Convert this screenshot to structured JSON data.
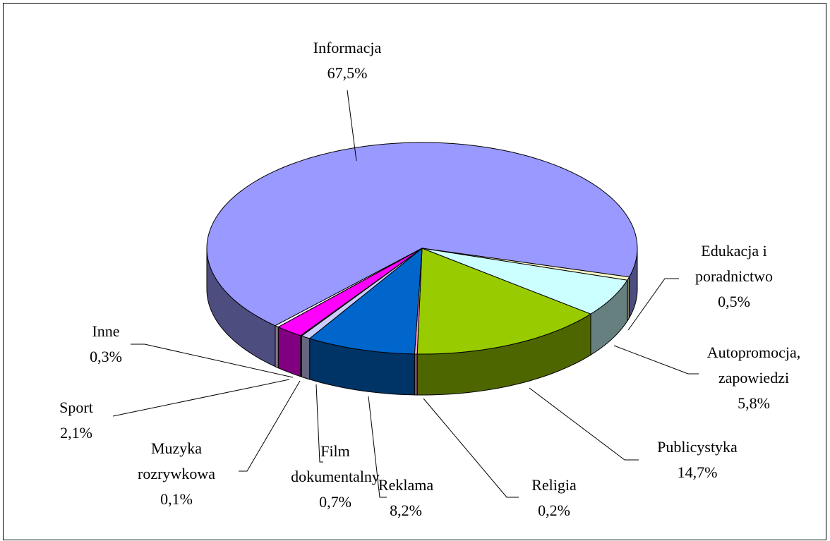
{
  "chart_data": {
    "type": "pie",
    "categories": [
      "Informacja",
      "Edukacja i poradnictwo",
      "Autopromocja, zapowiedzi",
      "Publicystyka",
      "Religia",
      "Reklama",
      "Film dokumentalny",
      "Muzyka rozrywkowa",
      "Sport",
      "Inne"
    ],
    "values": [
      67.5,
      0.5,
      5.8,
      14.7,
      0.2,
      8.2,
      0.7,
      0.1,
      2.1,
      0.3
    ],
    "value_labels": [
      "67,5%",
      "0,5%",
      "5,8%",
      "14,7%",
      "0,2%",
      "8,2%",
      "0,7%",
      "0,1%",
      "2,1%",
      "0,3%"
    ],
    "colors": [
      "#9999ff",
      "#ffffcc",
      "#ccffff",
      "#99cc00",
      "#ff99cc",
      "#0066cc",
      "#ccccff",
      "#660066",
      "#ff00ff",
      "#ffffff"
    ]
  }
}
